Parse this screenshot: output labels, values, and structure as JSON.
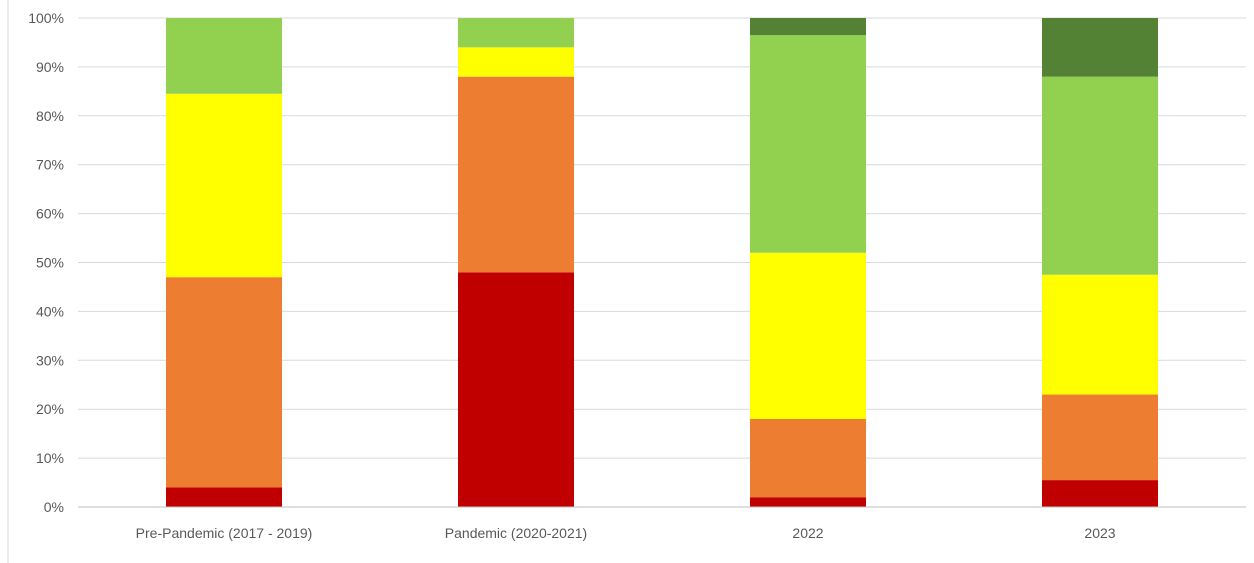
{
  "chart_data": {
    "type": "bar",
    "stacked": true,
    "percent_stacked": true,
    "categories": [
      "Pre-Pandemic (2017 - 2019)",
      "Pandemic (2020-2021)",
      "2022",
      "2023"
    ],
    "series": [
      {
        "color": "#c00000",
        "values": [
          4,
          48,
          2,
          5.5
        ]
      },
      {
        "color": "#ed7d31",
        "values": [
          43,
          40,
          16,
          17.5
        ]
      },
      {
        "color": "#ffff00",
        "values": [
          37.5,
          6,
          34,
          24.5
        ]
      },
      {
        "color": "#92d050",
        "values": [
          15.5,
          6,
          44.5,
          40.5
        ]
      },
      {
        "color": "#548235",
        "values": [
          0,
          0,
          3.5,
          12
        ]
      }
    ],
    "ylim": [
      0,
      100
    ],
    "yticks": [
      "0%",
      "10%",
      "20%",
      "30%",
      "40%",
      "50%",
      "60%",
      "70%",
      "80%",
      "90%",
      "100%"
    ],
    "grid": true,
    "legend": "none",
    "colors": {
      "gridline": "#d9d9d9",
      "axis_line": "#bfbfbf",
      "tick_text": "#595959"
    }
  }
}
